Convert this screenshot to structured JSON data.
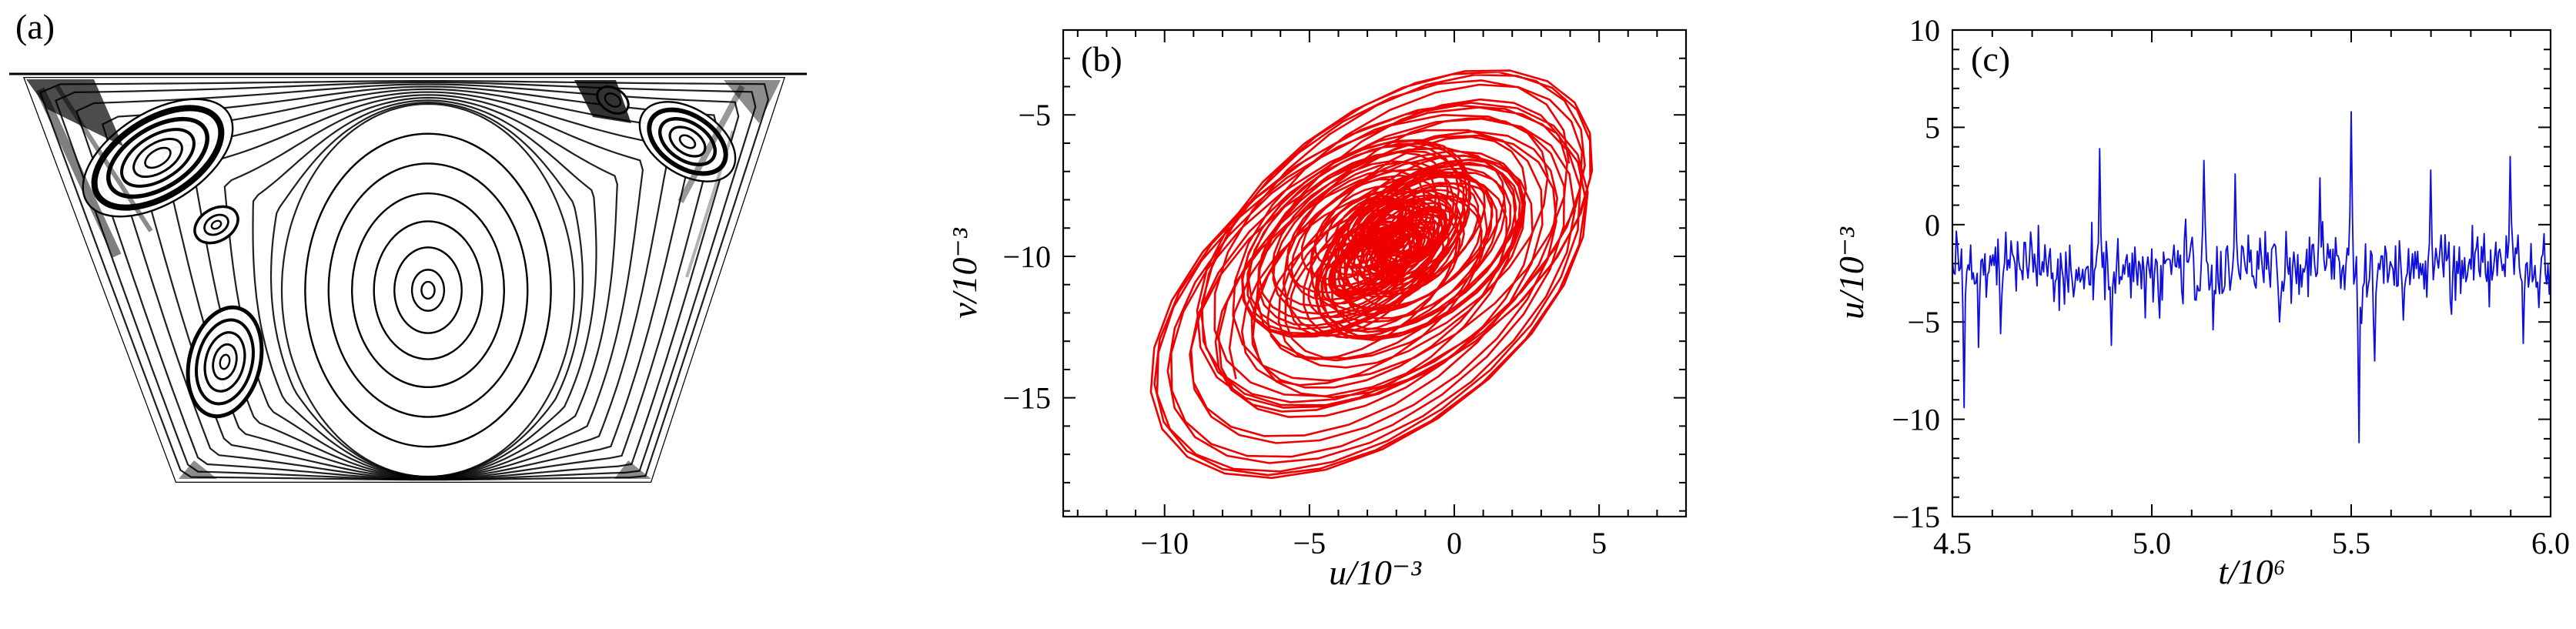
{
  "panel_letters": {
    "a": "(a)",
    "b": "(b)",
    "c": "(c)"
  },
  "chart_data": [
    {
      "type": "line",
      "panel": "a",
      "title": "",
      "description": "Streamline pattern of flow in a trapezoidal lid-driven cavity: one large primary vortex and secondary vortices near the top-left, mid-left, bottom-left and top-right walls, with dense streamlines hugging the slanted walls.",
      "geometry": {
        "lid": [
          [
            12,
            96
          ],
          [
            1048,
            96
          ]
        ],
        "cavity": [
          [
            30,
            100
          ],
          [
            1020,
            100
          ],
          [
            846,
            627
          ],
          [
            228,
            627
          ]
        ],
        "main_loops": {
          "cx": 556,
          "cy": 377,
          "rx": 190,
          "ry": 242,
          "margin": 0.985,
          "t_values": [
            0.03,
            0.09,
            0.17,
            0.27,
            0.38,
            0.5,
            0.62,
            0.74,
            0.85,
            0.94,
            1.0
          ],
          "inner_scales": [
            0.84,
            0.68,
            0.52,
            0.37,
            0.23,
            0.11,
            0.045
          ]
        },
        "vortices": [
          {
            "cx": 205,
            "cy": 205,
            "rx": 92,
            "ry": 50,
            "rot": -32,
            "scales": [
              1.18,
              1.0,
              0.78,
              0.57,
              0.38,
              0.2
            ],
            "widths": [
              2.4,
              8,
              5.5,
              4,
              3,
              2.6
            ]
          },
          {
            "cx": 281,
            "cy": 292,
            "rx": 30,
            "ry": 21,
            "rot": -30,
            "scales": [
              1.0,
              0.55,
              0.22
            ],
            "widths": [
              3.5,
              2.8,
              2.4
            ]
          },
          {
            "cx": 292,
            "cy": 470,
            "rx": 46,
            "ry": 72,
            "rot": 14,
            "scales": [
              1.0,
              0.77,
              0.54,
              0.32,
              0.13
            ],
            "widths": [
              5,
              4,
              3.2,
              2.8,
              2.4
            ]
          },
          {
            "cx": 893,
            "cy": 184,
            "rx": 55,
            "ry": 34,
            "rot": 33,
            "scales": [
              1.25,
              1.0,
              0.72,
              0.46,
              0.2
            ],
            "widths": [
              2.4,
              6,
              4.5,
              3.2,
              2.6
            ]
          },
          {
            "cx": 796,
            "cy": 130,
            "rx": 22,
            "ry": 15,
            "rot": 33,
            "scales": [
              1.0,
              0.5
            ],
            "widths": [
              3,
              2.4
            ]
          }
        ],
        "patches": [
          {
            "points": [
              [
                746,
                104
              ],
              [
                800,
                104
              ],
              [
                820,
                160
              ],
              [
                770,
                152
              ]
            ],
            "opacity": 0.8
          },
          {
            "points": [
              [
                940,
                104
              ],
              [
                1014,
                104
              ],
              [
                986,
                160
              ]
            ],
            "opacity": 0.45
          },
          {
            "points": [
              [
                34,
                103
              ],
              [
                122,
                103
              ],
              [
                160,
                190
              ],
              [
                62,
                142
              ]
            ],
            "opacity": 0.7
          },
          {
            "points": [
              [
                232,
                622
              ],
              [
                282,
                622
              ],
              [
                252,
                598
              ]
            ],
            "opacity": 0.45
          },
          {
            "points": [
              [
                798,
                622
              ],
              [
                846,
                622
              ],
              [
                816,
                598
              ]
            ],
            "opacity": 0.45
          }
        ],
        "streaks": [
          {
            "x1": 52,
            "y1": 116,
            "x2": 152,
            "y2": 332,
            "w": 12,
            "o": 0.5
          },
          {
            "x1": 74,
            "y1": 112,
            "x2": 196,
            "y2": 300,
            "w": 6,
            "o": 0.45
          },
          {
            "x1": 964,
            "y1": 112,
            "x2": 884,
            "y2": 262,
            "w": 8,
            "o": 0.4
          },
          {
            "x1": 952,
            "y1": 170,
            "x2": 892,
            "y2": 360,
            "w": 4,
            "o": 0.3
          }
        ]
      }
    },
    {
      "type": "line",
      "panel": "b",
      "title": "",
      "xlabel": "u/10⁻³",
      "ylabel": "v/10⁻³",
      "xlim": [
        -13.5,
        8
      ],
      "ylim": [
        -19.2,
        -2
      ],
      "xticks": [
        -10,
        -5,
        0,
        5
      ],
      "yticks": [
        -5,
        -10,
        -15
      ],
      "xtick_labels": [
        "−10",
        "−5",
        "0",
        "5"
      ],
      "ytick_labels": [
        "−5",
        "−10",
        "−15"
      ],
      "xminor": 1,
      "yminor": 1,
      "grid": false,
      "legend": false,
      "color": "#ee0000",
      "series": {
        "name": "chaotic phase trajectory (v vs u)",
        "core_center": [
          -2.3,
          -9.6
        ],
        "u_range": [
          -11,
          6
        ],
        "v_range": [
          -18.3,
          -3.4
        ],
        "gen": {
          "n": 2600,
          "cx": -2.3,
          "cy": -9.6,
          "d_theta": 0.26,
          "tilt": 0.5,
          "amp_base": 0.9,
          "amp_mod": 7.0,
          "f1": 0.012,
          "p1": 0.7,
          "f2": 0.0047,
          "p2": 2.1,
          "wob_u_amp": 1.1,
          "wob_u_f": 0.005,
          "wob_v_amp": 0.9,
          "wob_v_f": 0.0033,
          "aspect": 0.88,
          "skew": -0.1
        }
      }
    },
    {
      "type": "line",
      "panel": "c",
      "title": "",
      "xlabel": "t/10⁶",
      "ylabel": "u/10⁻³",
      "xlim": [
        4.5,
        6.0
      ],
      "ylim": [
        -15,
        10
      ],
      "xticks": [
        4.5,
        5.0,
        5.5,
        6.0
      ],
      "yticks": [
        10,
        5,
        0,
        -5,
        -10,
        -15
      ],
      "xtick_labels": [
        "4.5",
        "5.0",
        "5.5",
        "6.0"
      ],
      "ytick_labels": [
        "10",
        "5",
        "0",
        "−5",
        "−10",
        "−15"
      ],
      "xminor": 0.1,
      "yminor": 1,
      "grid": false,
      "legend": false,
      "color": "#1010dd",
      "series": {
        "name": "u time series",
        "baseline": -2.25,
        "gen": {
          "n": 460,
          "baseline": -2.25,
          "sd_mult": 1.55,
          "burst_p": 0.028,
          "burst_scale": 5.0,
          "burst_bias": 0.62,
          "seed": 20240613
        },
        "spikes": [
          [
            4.53,
            -9.4
          ],
          [
            4.565,
            -6.3
          ],
          [
            4.62,
            -5.6
          ],
          [
            4.87,
            3.9
          ],
          [
            4.9,
            -6.2
          ],
          [
            5.02,
            -4.8
          ],
          [
            5.13,
            3.3
          ],
          [
            5.155,
            -5.4
          ],
          [
            5.21,
            2.6
          ],
          [
            5.32,
            -5.0
          ],
          [
            5.42,
            2.4
          ],
          [
            5.5,
            5.8
          ],
          [
            5.52,
            -11.2
          ],
          [
            5.56,
            -7.0
          ],
          [
            5.63,
            -4.9
          ],
          [
            5.7,
            2.8
          ],
          [
            5.75,
            -4.6
          ],
          [
            5.9,
            3.5
          ],
          [
            5.93,
            -6.1
          ]
        ]
      }
    }
  ]
}
